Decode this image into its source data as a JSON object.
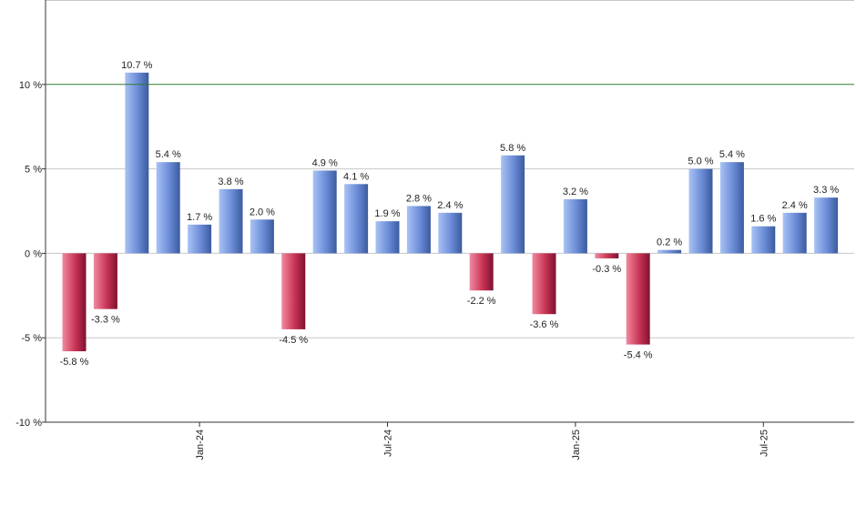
{
  "chart_data": {
    "type": "bar",
    "title": "",
    "xlabel": "",
    "ylabel": "",
    "ylim": [
      -10,
      15
    ],
    "y_ticks": [
      {
        "value": 10,
        "label": "10 %"
      },
      {
        "value": 5,
        "label": "5 %"
      },
      {
        "value": 0,
        "label": "0 %"
      },
      {
        "value": -5,
        "label": "-5 %"
      },
      {
        "value": -10,
        "label": "-10 %"
      }
    ],
    "x_ticks": [
      {
        "index": 4,
        "label": "Jan-24"
      },
      {
        "index": 10,
        "label": "Jul-24"
      },
      {
        "index": 16,
        "label": "Jan-25"
      },
      {
        "index": 22,
        "label": "Jul-25"
      }
    ],
    "reference_line": 10,
    "values": [
      -5.8,
      -3.3,
      10.7,
      5.4,
      1.7,
      3.8,
      2.0,
      -4.5,
      4.9,
      4.1,
      1.9,
      2.8,
      2.4,
      -2.2,
      5.8,
      -3.6,
      3.2,
      -0.3,
      -5.4,
      0.2,
      5.0,
      5.4,
      1.6,
      2.4,
      3.3
    ],
    "data_labels": [
      "-5.8 %",
      "-3.3 %",
      "10.7 %",
      "5.4 %",
      "1.7 %",
      "3.8 %",
      "2.0 %",
      "-4.5 %",
      "4.9 %",
      "4.1 %",
      "1.9 %",
      "2.8 %",
      "2.4 %",
      "-2.2 %",
      "5.8 %",
      "-3.6 %",
      "3.2 %",
      "-0.3 %",
      "-5.4 %",
      "0.2 %",
      "5.0 %",
      "5.4 %",
      "1.6 %",
      "2.4 %",
      "3.3 %"
    ],
    "grid": true,
    "legend": "none",
    "colors": {
      "positive": "#6f8fd8",
      "negative": "#cc3355",
      "reference_line": "#2e7d32",
      "grid": "#c8c8c8",
      "axis": "#333333"
    }
  }
}
